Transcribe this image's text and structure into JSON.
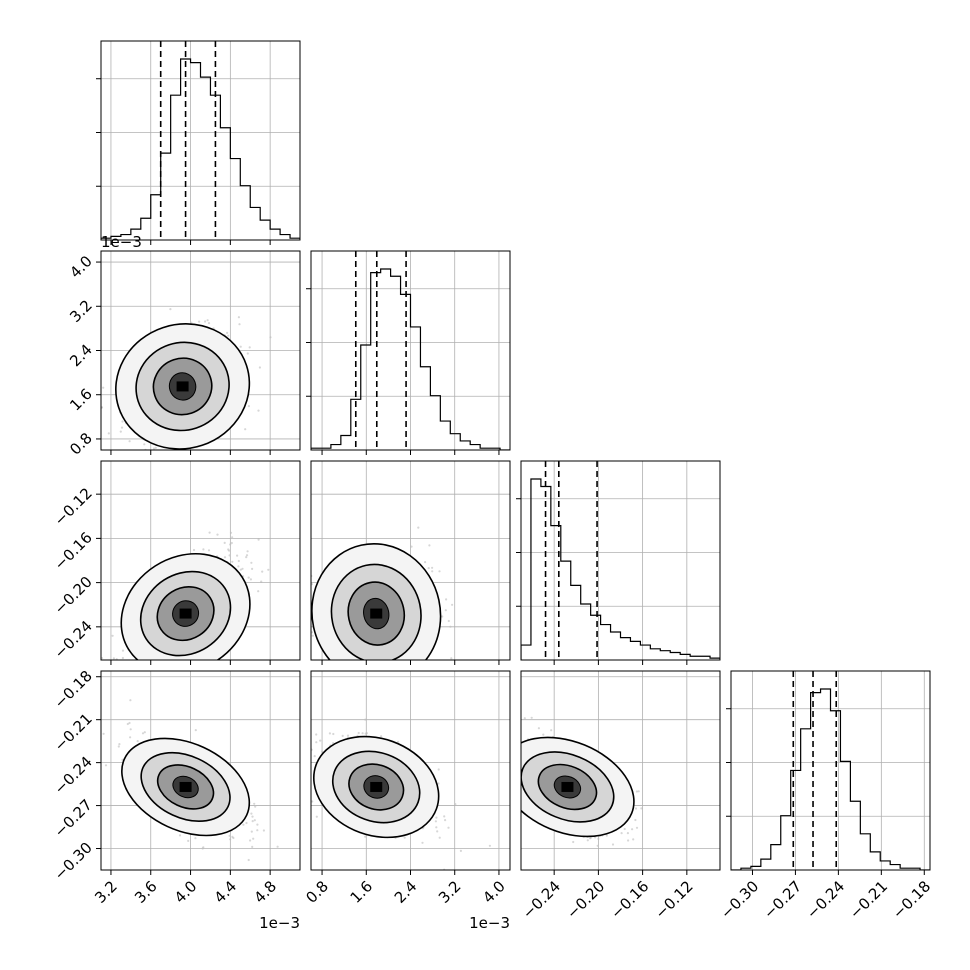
{
  "chart_data": {
    "type": "corner",
    "parameters": [
      {
        "index": 0,
        "range": [
          0.0031,
          0.0051
        ],
        "ticks": [
          {
            "value": 0.0032,
            "label": "3.2"
          },
          {
            "value": 0.0036,
            "label": "3.6"
          },
          {
            "value": 0.004,
            "label": "4.0"
          },
          {
            "value": 0.0044,
            "label": "4.4"
          },
          {
            "value": 0.0048,
            "label": "4.8"
          }
        ],
        "offset_label": "1e−3",
        "quantiles": [
          0.0037,
          0.00395,
          0.00425
        ],
        "hist_counts": [
          1,
          2,
          3,
          6,
          12,
          25,
          48,
          80,
          100,
          98,
          90,
          80,
          62,
          45,
          30,
          18,
          11,
          6,
          3,
          1
        ]
      },
      {
        "index": 1,
        "range": [
          0.0006,
          0.0042
        ],
        "ticks": [
          {
            "value": 0.0008,
            "label": "0.8"
          },
          {
            "value": 0.0016,
            "label": "1.6"
          },
          {
            "value": 0.0024,
            "label": "2.4"
          },
          {
            "value": 0.0032,
            "label": "3.2"
          },
          {
            "value": 0.004,
            "label": "4.0"
          }
        ],
        "offset_label": "1e−3",
        "quantiles": [
          0.00141,
          0.00179,
          0.00232
        ],
        "hist_counts": [
          1,
          1,
          3,
          8,
          28,
          58,
          98,
          100,
          96,
          86,
          68,
          46,
          30,
          16,
          9,
          5,
          3,
          1,
          1,
          0
        ]
      },
      {
        "index": 2,
        "range": [
          -0.27,
          -0.09
        ],
        "ticks": [
          {
            "value": -0.24,
            "label": "−0.24"
          },
          {
            "value": -0.2,
            "label": "−0.20"
          },
          {
            "value": -0.16,
            "label": "−0.16"
          },
          {
            "value": -0.12,
            "label": "−0.12"
          }
        ],
        "offset_label": "",
        "quantiles": [
          -0.2478,
          -0.2358,
          -0.2012
        ],
        "hist_counts": [
          8,
          97,
          93,
          72,
          53,
          40,
          30,
          24,
          19,
          15,
          12,
          10,
          8,
          6,
          5,
          4,
          3,
          2,
          2,
          1
        ]
      },
      {
        "index": 3,
        "range": [
          -0.315,
          -0.176
        ],
        "ticks": [
          {
            "value": -0.3,
            "label": "−0.30"
          },
          {
            "value": -0.27,
            "label": "−0.27"
          },
          {
            "value": -0.24,
            "label": "−0.24"
          },
          {
            "value": -0.21,
            "label": "−0.21"
          },
          {
            "value": -0.18,
            "label": "−0.18"
          }
        ],
        "offset_label": "",
        "quantiles": [
          -0.2715,
          -0.2577,
          -0.2415
        ],
        "hist_counts": [
          0,
          1,
          2,
          6,
          14,
          30,
          55,
          78,
          98,
          100,
          88,
          60,
          38,
          20,
          10,
          5,
          3,
          1,
          1,
          0
        ]
      }
    ],
    "pair_panels": [
      {
        "x": 0,
        "y": 1,
        "mean": [
          0.00392,
          0.00175
        ],
        "sd": [
          0.00028,
          0.00048
        ],
        "rho": 0.35
      },
      {
        "x": 0,
        "y": 2,
        "mean": [
          0.00395,
          -0.228
        ],
        "sd": [
          0.00028,
          0.026
        ],
        "rho": 0.62
      },
      {
        "x": 1,
        "y": 2,
        "mean": [
          0.00178,
          -0.228
        ],
        "sd": [
          0.00048,
          0.026
        ],
        "rho": 0.2
      },
      {
        "x": 0,
        "y": 3,
        "mean": [
          0.00395,
          -0.257
        ],
        "sd": [
          0.00028,
          0.015
        ],
        "rho": -0.6
      },
      {
        "x": 1,
        "y": 3,
        "mean": [
          0.00178,
          -0.257
        ],
        "sd": [
          0.00048,
          0.015
        ],
        "rho": -0.45
      },
      {
        "x": 2,
        "y": 3,
        "mean": [
          -0.228,
          -0.257
        ],
        "sd": [
          0.026,
          0.015
        ],
        "rho": -0.55
      }
    ],
    "grid": true,
    "color": "#000000",
    "point_color": "#bdbdbd"
  }
}
